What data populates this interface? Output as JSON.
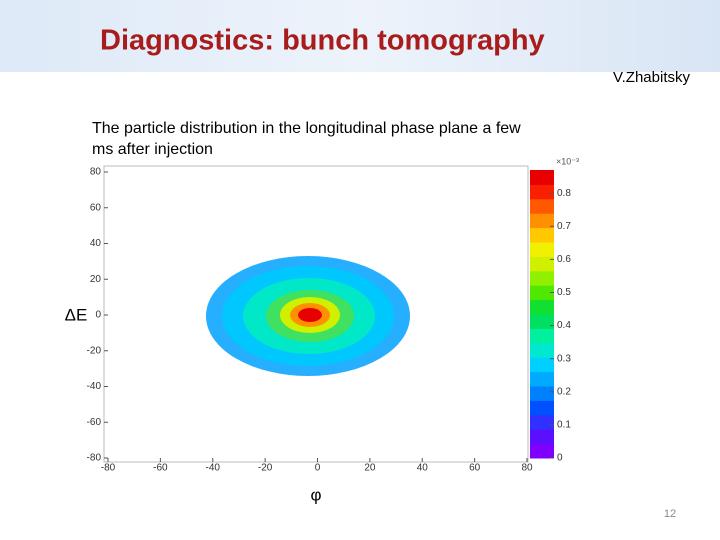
{
  "header": {
    "title": "Diagnostics: bunch tomography",
    "author": "V.Zhabitsky"
  },
  "chart_data": {
    "type": "heatmap",
    "title": "The particle distribution in the longitudinal phase plane a few ms after injection",
    "xlabel": "φ",
    "ylabel": "ΔE",
    "xlim": [
      -80,
      80
    ],
    "xticks": [
      -80,
      -60,
      -40,
      -20,
      0,
      20,
      40,
      60,
      80
    ],
    "ylim": [
      -80,
      80
    ],
    "yticks": [
      -80,
      -60,
      -40,
      -20,
      0,
      20,
      40,
      60,
      80
    ],
    "colorbar": {
      "lim": [
        0,
        0.87
      ],
      "ticks": [
        0,
        0.1,
        0.2,
        0.3,
        0.4,
        0.5,
        0.6,
        0.7,
        0.8
      ],
      "exponent_label": "×10⁻³",
      "colors": [
        "#7f00ff",
        "#5a10ff",
        "#3030ff",
        "#0050ff",
        "#0080ff",
        "#00aaff",
        "#00d0ff",
        "#00e8d0",
        "#00f0a0",
        "#00e060",
        "#10e030",
        "#50e800",
        "#90f000",
        "#d0f000",
        "#f0f000",
        "#ffc800",
        "#ff9000",
        "#ff5800",
        "#f82000",
        "#e80000"
      ]
    }
  },
  "page_number": "12"
}
